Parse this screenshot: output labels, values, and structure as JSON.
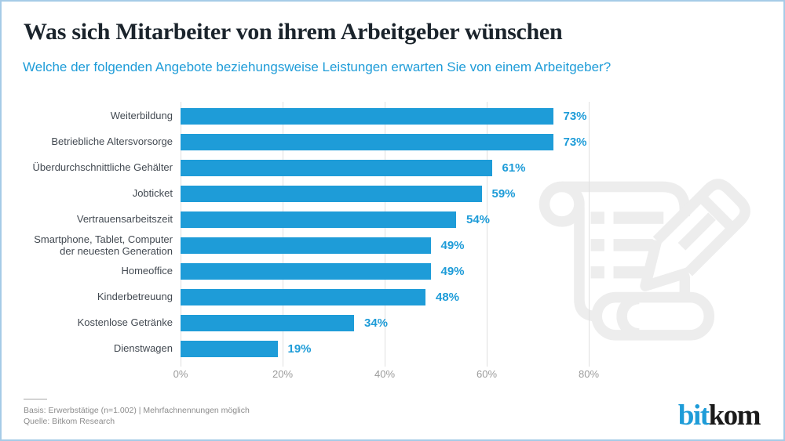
{
  "header": {
    "title": "Was sich Mitarbeiter von ihrem Arbeitgeber wünschen",
    "subtitle": "Welche der folgenden Angebote beziehungsweise Leistungen erwarten Sie von einem Arbeitgeber?"
  },
  "chart_data": {
    "type": "bar",
    "orientation": "horizontal",
    "categories": [
      "Weiterbildung",
      "Betriebliche Altersvorsorge",
      "Überdurchschnittliche Gehälter",
      "Jobticket",
      "Vertrauensarbeitszeit",
      "Smartphone, Tablet, Computer\nder neuesten Generation",
      "Homeoffice",
      "Kinderbetreuung",
      "Kostenlose Getränke",
      "Dienstwagen"
    ],
    "values": [
      73,
      73,
      61,
      59,
      54,
      49,
      49,
      48,
      34,
      19
    ],
    "value_suffix": "%",
    "data_labels": [
      "73%",
      "73%",
      "61%",
      "59%",
      "54%",
      "49%",
      "49%",
      "48%",
      "34%",
      "19%"
    ],
    "x_ticks": [
      "0%",
      "20%",
      "40%",
      "60%",
      "80%"
    ],
    "xlim": [
      0,
      80
    ],
    "grid": true,
    "legend": false,
    "bar_color": "#1E9CD8",
    "value_label_color": "#1E9CD8",
    "gridline_color": "#E0E0E0"
  },
  "footer": {
    "basis": "Basis: Erwerbstätige (n=1.002) | Mehrfachnennungen möglich",
    "source": "Quelle: Bitkom Research",
    "logo_part1": "bit",
    "logo_part2": "kom"
  },
  "colors": {
    "accent_blue": "#1E9CD8",
    "title": "#1B242C",
    "category_label": "#434A52",
    "axis_label": "#9B9B9B",
    "footer_text": "#8C8C8C",
    "border": "#A6CBE7",
    "watermark": "#EDEDED"
  },
  "icons": {
    "watermark": "scroll-with-pencil-icon"
  }
}
